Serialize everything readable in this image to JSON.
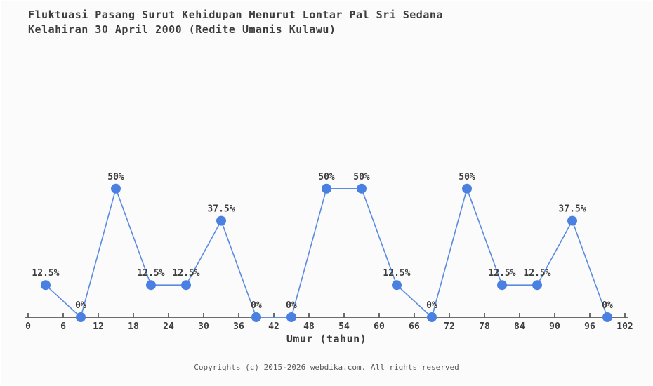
{
  "header": {
    "title_lines": [
      "Fluktuasi Pasang Surut Kehidupan Menurut Lontar Pal Sri Sedana",
      "Kelahiran 30 April 2000 (Redite Umanis Kulawu)"
    ]
  },
  "chart_data": {
    "type": "line",
    "title": "Fluktuasi Pasang Surut Kehidupan Menurut Lontar Pal Sri Sedana Kelahiran 30 April 2000 (Redite Umanis Kulawu)",
    "x": [
      3,
      9,
      15,
      21,
      27,
      33,
      39,
      45,
      51,
      57,
      63,
      69,
      75,
      81,
      87,
      93,
      99
    ],
    "values": [
      12.5,
      0,
      50,
      12.5,
      12.5,
      37.5,
      0,
      0,
      50,
      50,
      12.5,
      0,
      50,
      12.5,
      12.5,
      37.5,
      0
    ],
    "point_labels": [
      "12.5%",
      "0%",
      "50%",
      "12.5%",
      "12.5%",
      "37.5%",
      "0%",
      "0%",
      "50%",
      "50%",
      "12.5%",
      "0%",
      "50%",
      "12.5%",
      "12.5%",
      "37.5%",
      "0%"
    ],
    "xlabel": "Umur (tahun)",
    "ylabel": "",
    "x_ticks": [
      0,
      6,
      12,
      18,
      24,
      30,
      36,
      42,
      48,
      54,
      60,
      66,
      72,
      78,
      84,
      90,
      96,
      102
    ],
    "xlim": [
      0,
      102
    ],
    "ylim": [
      0,
      55
    ],
    "grid": false,
    "legend": "none",
    "colors": {
      "point": "#4a80e2",
      "line": "#5b8be0",
      "axis": "#3d3d3d",
      "text": "#3d3d3d",
      "footer": "#575757",
      "background": "#fbfbfb"
    }
  },
  "footer": {
    "copyright": "Copyrights (c) 2015-2026 webdika.com. All rights reserved"
  }
}
